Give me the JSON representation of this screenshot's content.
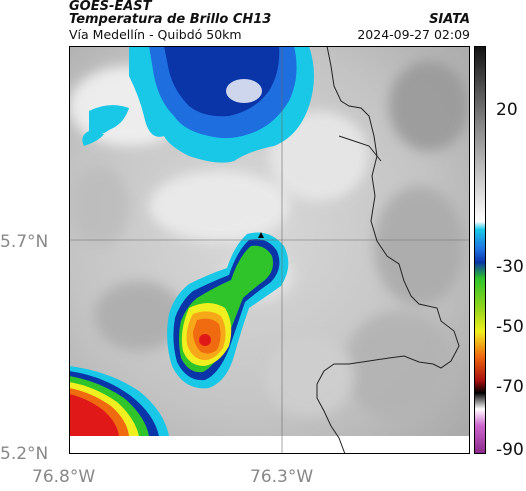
{
  "header": {
    "satellite": "GOES-EAST",
    "product": "Temperatura de Brillo CH13",
    "region": "Vía Medellín - Quibdó 50km",
    "source": "SIATA",
    "datetime": "2024-09-27 02:09"
  },
  "axes": {
    "y_ticks": [
      "5.7°N",
      "5.2°N"
    ],
    "x_ticks": [
      "76.8°W",
      "76.3°W"
    ]
  },
  "colorbar": {
    "ticks": [
      "20",
      "-30",
      "-50",
      "-70",
      "-90"
    ]
  },
  "colors": {
    "cold_blue": "#0a35a8",
    "cyan": "#19c8e6",
    "green": "#2ec42a",
    "yellow": "#f0f020",
    "orange": "#f06a10",
    "red": "#e01818"
  }
}
